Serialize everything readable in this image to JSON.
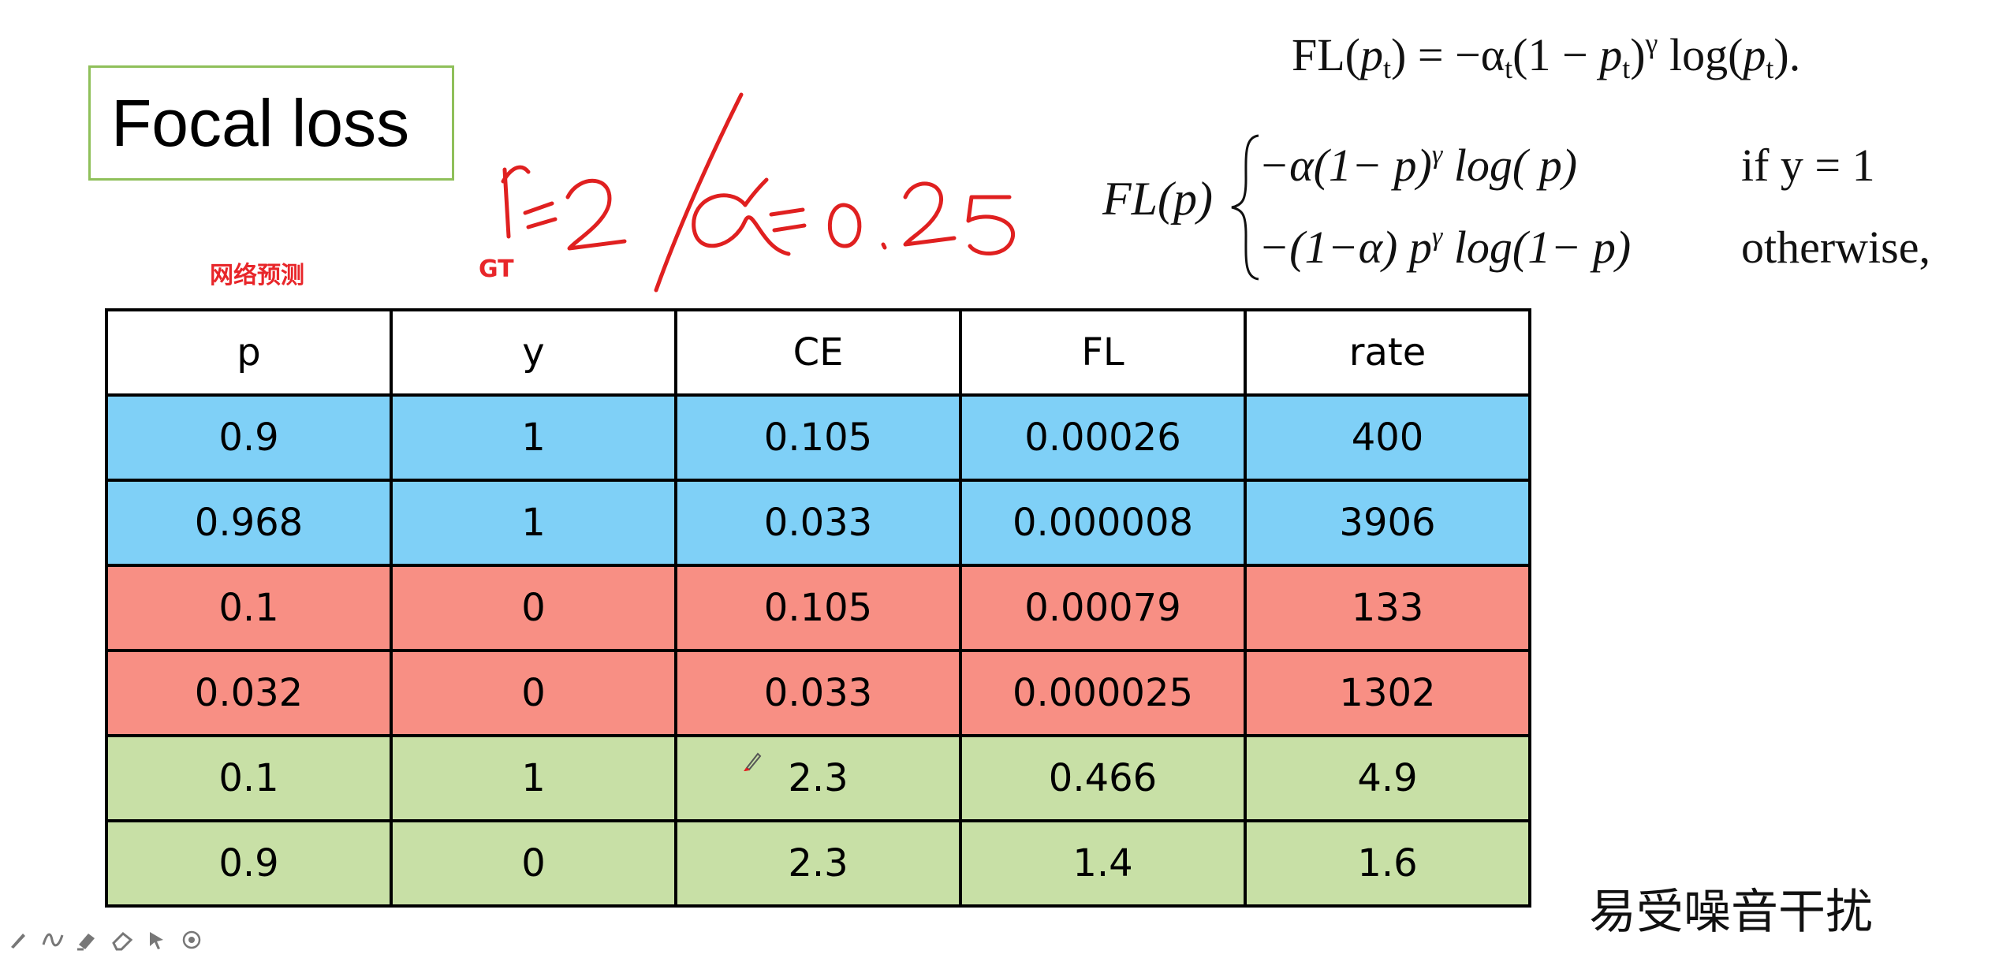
{
  "title": "Focal loss",
  "labels": {
    "prediction": "网络预测",
    "ground_truth": "GT"
  },
  "formulas": {
    "fl_pt": {
      "lhs": "FL(",
      "p": "p",
      "t": "t",
      "eq": ") = −α",
      "mid": "(1 − ",
      "gamma_close": ")",
      "gamma": "γ",
      "log": " log(",
      "end": ")."
    },
    "fl_p": {
      "lhs": "FL(p)",
      "case1": "−α(1− p)",
      "case1_tail": " log( p)",
      "case1_cond": "if  y = 1",
      "case2": "−(1−α) p",
      "case2_tail": " log(1− p)",
      "case2_cond": "otherwise,",
      "gamma": "γ"
    }
  },
  "table": {
    "headers": [
      "p",
      "y",
      "CE",
      "FL",
      "rate"
    ],
    "rows": [
      {
        "color": "blue",
        "cells": [
          "0.9",
          "1",
          "0.105",
          "0.00026",
          "400"
        ]
      },
      {
        "color": "blue",
        "cells": [
          "0.968",
          "1",
          "0.033",
          "0.000008",
          "3906"
        ]
      },
      {
        "color": "red",
        "cells": [
          "0.1",
          "0",
          "0.105",
          "0.00079",
          "133"
        ]
      },
      {
        "color": "red",
        "cells": [
          "0.032",
          "0",
          "0.033",
          "0.000025",
          "1302"
        ]
      },
      {
        "color": "green",
        "cells": [
          "0.1",
          "1",
          "2.3",
          "0.466",
          "4.9"
        ]
      },
      {
        "color": "green",
        "cells": [
          "0.9",
          "0",
          "2.3",
          "1.4",
          "1.6"
        ]
      }
    ]
  },
  "note": "易受噪音干扰",
  "colors": {
    "blue_row": "#7fd0f7",
    "red_row": "#f88f84",
    "green_row": "#c8e0a6",
    "title_border": "#8fc05a",
    "label_red": "#e8262a",
    "ink_red": "#e02020"
  },
  "toolbar": [
    {
      "icon": "pen-icon"
    },
    {
      "icon": "freehand-icon"
    },
    {
      "icon": "highlighter-icon"
    },
    {
      "icon": "eraser-icon"
    },
    {
      "icon": "pointer-icon"
    },
    {
      "icon": "target-icon"
    }
  ]
}
